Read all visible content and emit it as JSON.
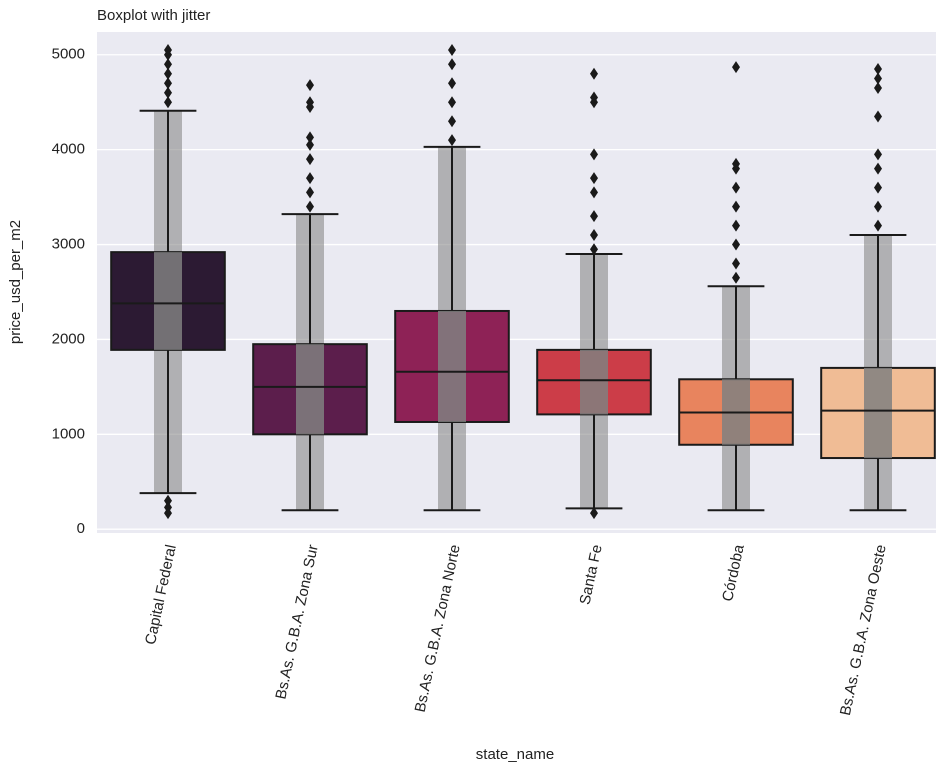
{
  "chart_data": {
    "type": "box",
    "title": "Boxplot with jitter",
    "x_label": "state_name",
    "y_label": "price_usd_per_m2",
    "categories": [
      "Capital Federal",
      "Bs.As. G.B.A. Zona Sur",
      "Bs.As. G.B.A. Zona Norte",
      "Santa Fe",
      "Córdoba",
      "Bs.As. G.B.A. Zona Oeste"
    ],
    "colors": [
      "#2c1a33",
      "#5c1e4c",
      "#8e2256",
      "#cc3d48",
      "#e8845e",
      "#f0bc95"
    ],
    "boxes": [
      {
        "whislo": 380,
        "q1": 1890,
        "med": 2380,
        "q3": 2920,
        "whishi": 4410,
        "fliers": [
          170,
          230,
          300,
          4500,
          4600,
          4700,
          4800,
          4900,
          5000,
          5050
        ]
      },
      {
        "whislo": 200,
        "q1": 1000,
        "med": 1500,
        "q3": 1950,
        "whishi": 3320,
        "fliers": [
          3400,
          3550,
          3700,
          3900,
          4050,
          4130,
          4450,
          4500,
          4680
        ]
      },
      {
        "whislo": 200,
        "q1": 1130,
        "med": 1660,
        "q3": 2300,
        "whishi": 4030,
        "fliers": [
          4100,
          4300,
          4500,
          4700,
          4900,
          5050
        ]
      },
      {
        "whislo": 220,
        "q1": 1210,
        "med": 1570,
        "q3": 1890,
        "whishi": 2900,
        "fliers": [
          170,
          2950,
          3100,
          3300,
          3550,
          3700,
          3950,
          4500,
          4550,
          4800
        ]
      },
      {
        "whislo": 200,
        "q1": 890,
        "med": 1230,
        "q3": 1580,
        "whishi": 2560,
        "fliers": [
          2650,
          2800,
          3000,
          3200,
          3400,
          3600,
          3800,
          3850,
          4870
        ]
      },
      {
        "whislo": 200,
        "q1": 750,
        "med": 1250,
        "q3": 1700,
        "whishi": 3100,
        "fliers": [
          3200,
          3400,
          3600,
          3800,
          3950,
          4350,
          4650,
          4750,
          4850
        ]
      }
    ],
    "ylim": [
      -40,
      5240
    ],
    "yticks": [
      0,
      1000,
      2000,
      3000,
      4000,
      5000
    ],
    "grid": true
  }
}
